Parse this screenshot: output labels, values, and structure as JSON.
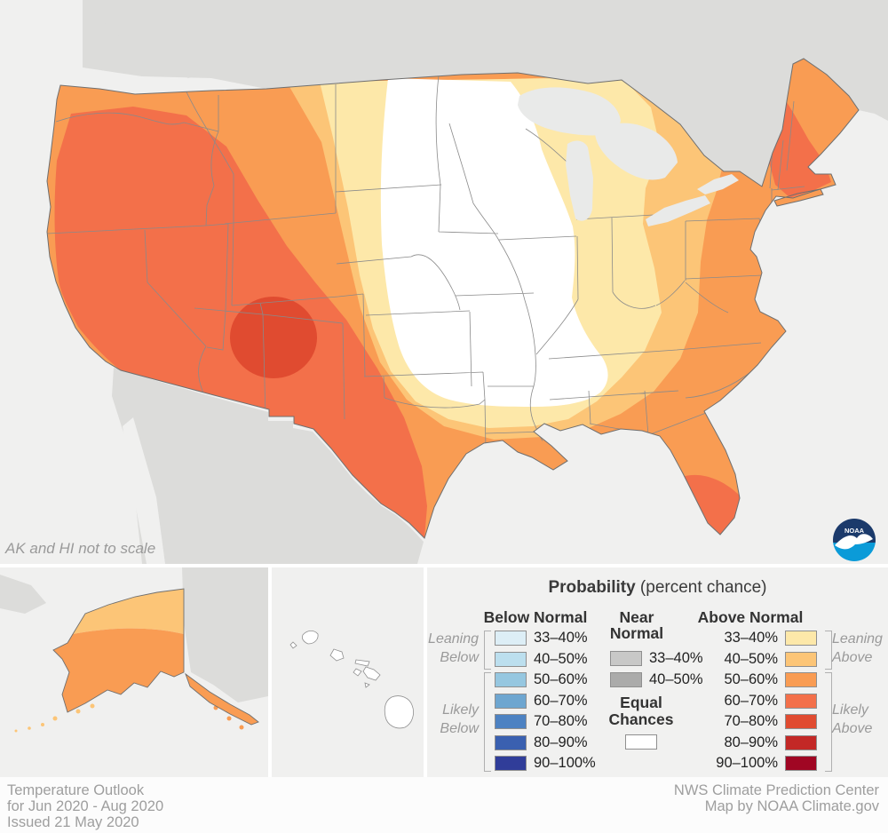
{
  "map": {
    "note": "AK and HI not to scale"
  },
  "logo": {
    "text": "NOAA"
  },
  "legend": {
    "title_bold": "Probability",
    "title_rest": " (percent chance)",
    "below": {
      "header": "Below Normal",
      "rows": [
        {
          "range": "33–40%",
          "color": "#ddeef6"
        },
        {
          "range": "40–50%",
          "color": "#bcdfee"
        },
        {
          "range": "50–60%",
          "color": "#96c7e0"
        },
        {
          "range": "60–70%",
          "color": "#6ea6d0"
        },
        {
          "range": "70–80%",
          "color": "#4d82c2"
        },
        {
          "range": "80–90%",
          "color": "#3a60b0"
        },
        {
          "range": "90–100%",
          "color": "#303d99"
        }
      ]
    },
    "near": {
      "header_line1": "Near",
      "header_line2": "Normal",
      "rows": [
        {
          "range": "33–40%",
          "color": "#c8c8c7"
        },
        {
          "range": "40–50%",
          "color": "#ababaa"
        }
      ]
    },
    "above": {
      "header": "Above Normal",
      "rows": [
        {
          "range": "33–40%",
          "color": "#fde8a9"
        },
        {
          "range": "40–50%",
          "color": "#fcc577"
        },
        {
          "range": "50–60%",
          "color": "#f99c53"
        },
        {
          "range": "60–70%",
          "color": "#f3704a"
        },
        {
          "range": "70–80%",
          "color": "#e04b30"
        },
        {
          "range": "80–90%",
          "color": "#c32826"
        },
        {
          "range": "90–100%",
          "color": "#a00623"
        }
      ]
    },
    "equal": {
      "label_line1": "Equal",
      "label_line2": "Chances",
      "color": "#ffffff"
    },
    "side_labels": {
      "leaning_below_1": "Leaning",
      "leaning_below_2": "Below",
      "likely_below_1": "Likely",
      "likely_below_2": "Below",
      "leaning_above_1": "Leaning",
      "leaning_above_2": "Above",
      "likely_above_1": "Likely",
      "likely_above_2": "Above"
    }
  },
  "footer": {
    "left_line1": "Temperature Outlook",
    "left_line2": "for Jun 2020 - Aug 2020",
    "left_line3": "Issued 21 May 2020",
    "right_line1": "NWS Climate Prediction Center",
    "right_line2": "Map by NOAA Climate.gov"
  },
  "colors": {
    "ocean": "#f0f0ef",
    "foreign_land": "#dcdcda",
    "lakes": "#e9eae9",
    "equal_chances": "#ffffff",
    "state_line": "#8a8a8a",
    "us_outline": "#6f6f6f",
    "above": [
      "#fde8a9",
      "#fcc577",
      "#f99c53",
      "#f3704a",
      "#e04b30",
      "#c32826",
      "#a00623"
    ],
    "logo_dark_blue": "#1b3a6b",
    "logo_light_blue": "#0b9bd8"
  }
}
